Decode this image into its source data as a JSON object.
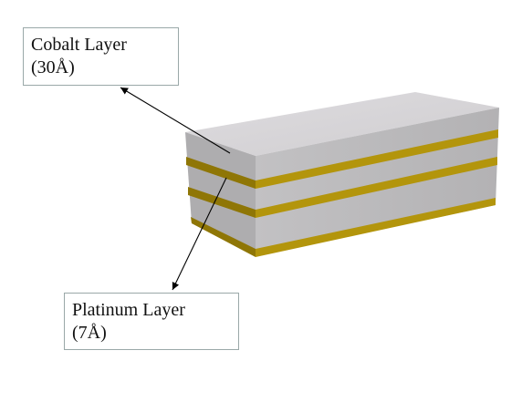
{
  "labels": {
    "cobalt": {
      "line1": "Cobalt Layer",
      "line2": "(30Å)"
    },
    "platinum": {
      "line1": "Platinum Layer",
      "line2": "(7Å)"
    }
  },
  "colors": {
    "cobalt_top": "#d3d1d4",
    "cobalt_front": "#b9b8ba",
    "cobalt_side": "#a9a8aa",
    "platinum_front": "#b0910a",
    "platinum_side": "#8a7205",
    "arrow": "#000000"
  }
}
